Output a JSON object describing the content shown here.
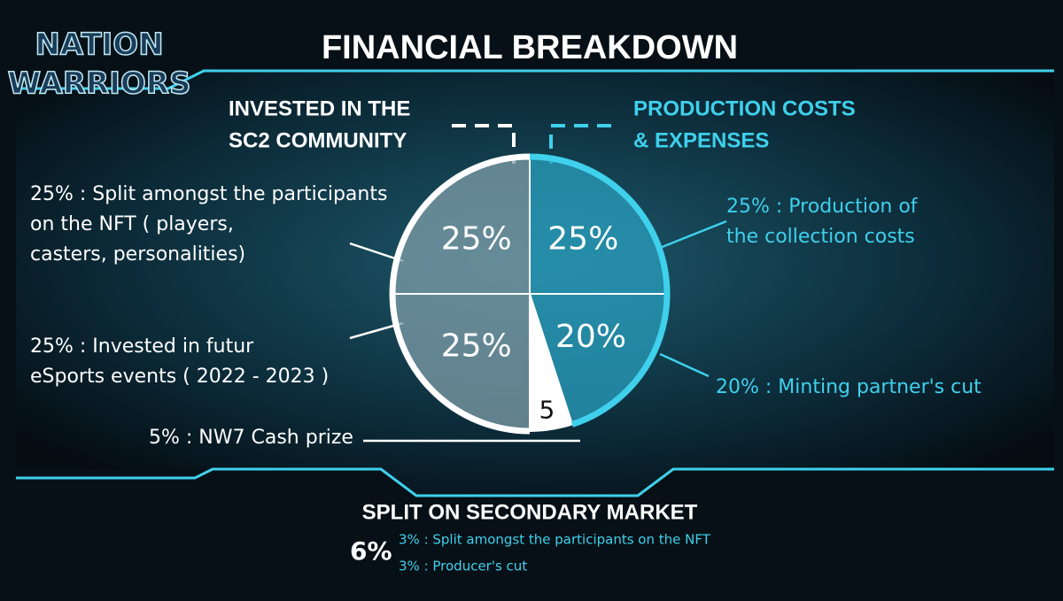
{
  "logo": {
    "lines": [
      "NATION",
      "WARRIORS"
    ]
  },
  "chart_data": {
    "type": "pie",
    "title": "FINANCIAL BREAKDOWN",
    "groups": [
      {
        "name": [
          "INVESTED IN THE",
          "SC2 COMMUNITY"
        ],
        "color": "#ffffff"
      },
      {
        "name": [
          "PRODUCTION COSTS",
          "& EXPENSES"
        ],
        "color": "#3fd0ec"
      }
    ],
    "categories": [
      [
        "25% : Production of",
        "the collection costs"
      ],
      [
        "20% : Minting partner's cut"
      ],
      [
        "5% : NW7 Cash prize"
      ],
      [
        "25% : Invested in futur",
        "eSports events ( 2022 - 2023 )"
      ],
      [
        "25% : Split amongst the participants",
        "on the NFT ( players,",
        "casters, personalities)"
      ]
    ],
    "values": [
      25,
      20,
      5,
      25,
      25
    ],
    "value_labels": [
      "25%",
      "20%",
      "5",
      "25%",
      "25%"
    ],
    "colors": [
      "#2a9fbd",
      "#2a9fbd",
      "#ffffff",
      "#7f9ea8",
      "#7f9ea8"
    ]
  },
  "secondary_market": {
    "title": "SPLIT ON SECONDARY MARKET",
    "total": "6%",
    "items": [
      "3% : Split amongst the participants on the NFT",
      "3% : Producer's cut"
    ]
  }
}
